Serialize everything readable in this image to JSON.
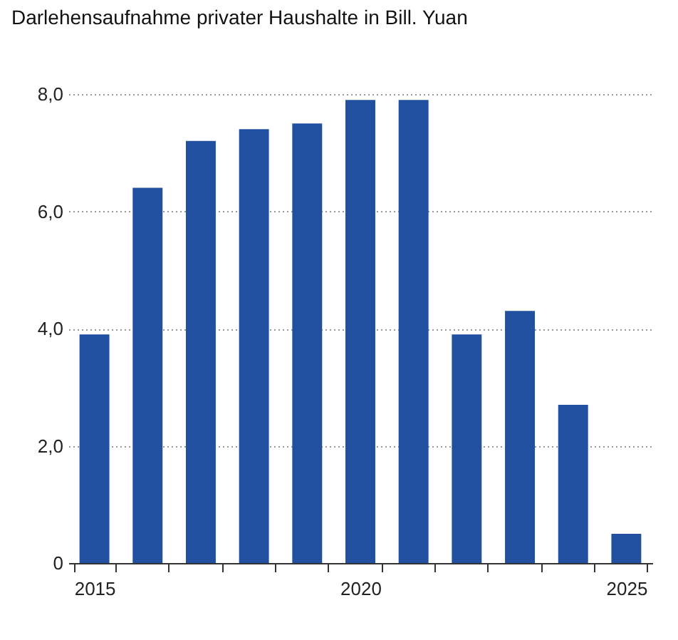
{
  "chart_data": {
    "type": "bar",
    "title": "Darlehensaufnahme privater Haushalte in Bill. Yuan",
    "categories": [
      "2015",
      null,
      null,
      null,
      null,
      "2020",
      null,
      null,
      null,
      null,
      "2025"
    ],
    "values": [
      3.9,
      6.4,
      7.2,
      7.4,
      7.5,
      7.9,
      7.9,
      3.9,
      4.3,
      2.7,
      0.5
    ],
    "color": "#2150a0",
    "ylim": [
      0,
      8
    ],
    "yticks": [
      0,
      {
        "value": 2,
        "label": "2,0"
      },
      {
        "value": 4,
        "label": "4,0"
      },
      {
        "value": 6,
        "label": "6,0"
      },
      {
        "value": 8,
        "label": "8,0"
      }
    ],
    "grid": "y"
  }
}
